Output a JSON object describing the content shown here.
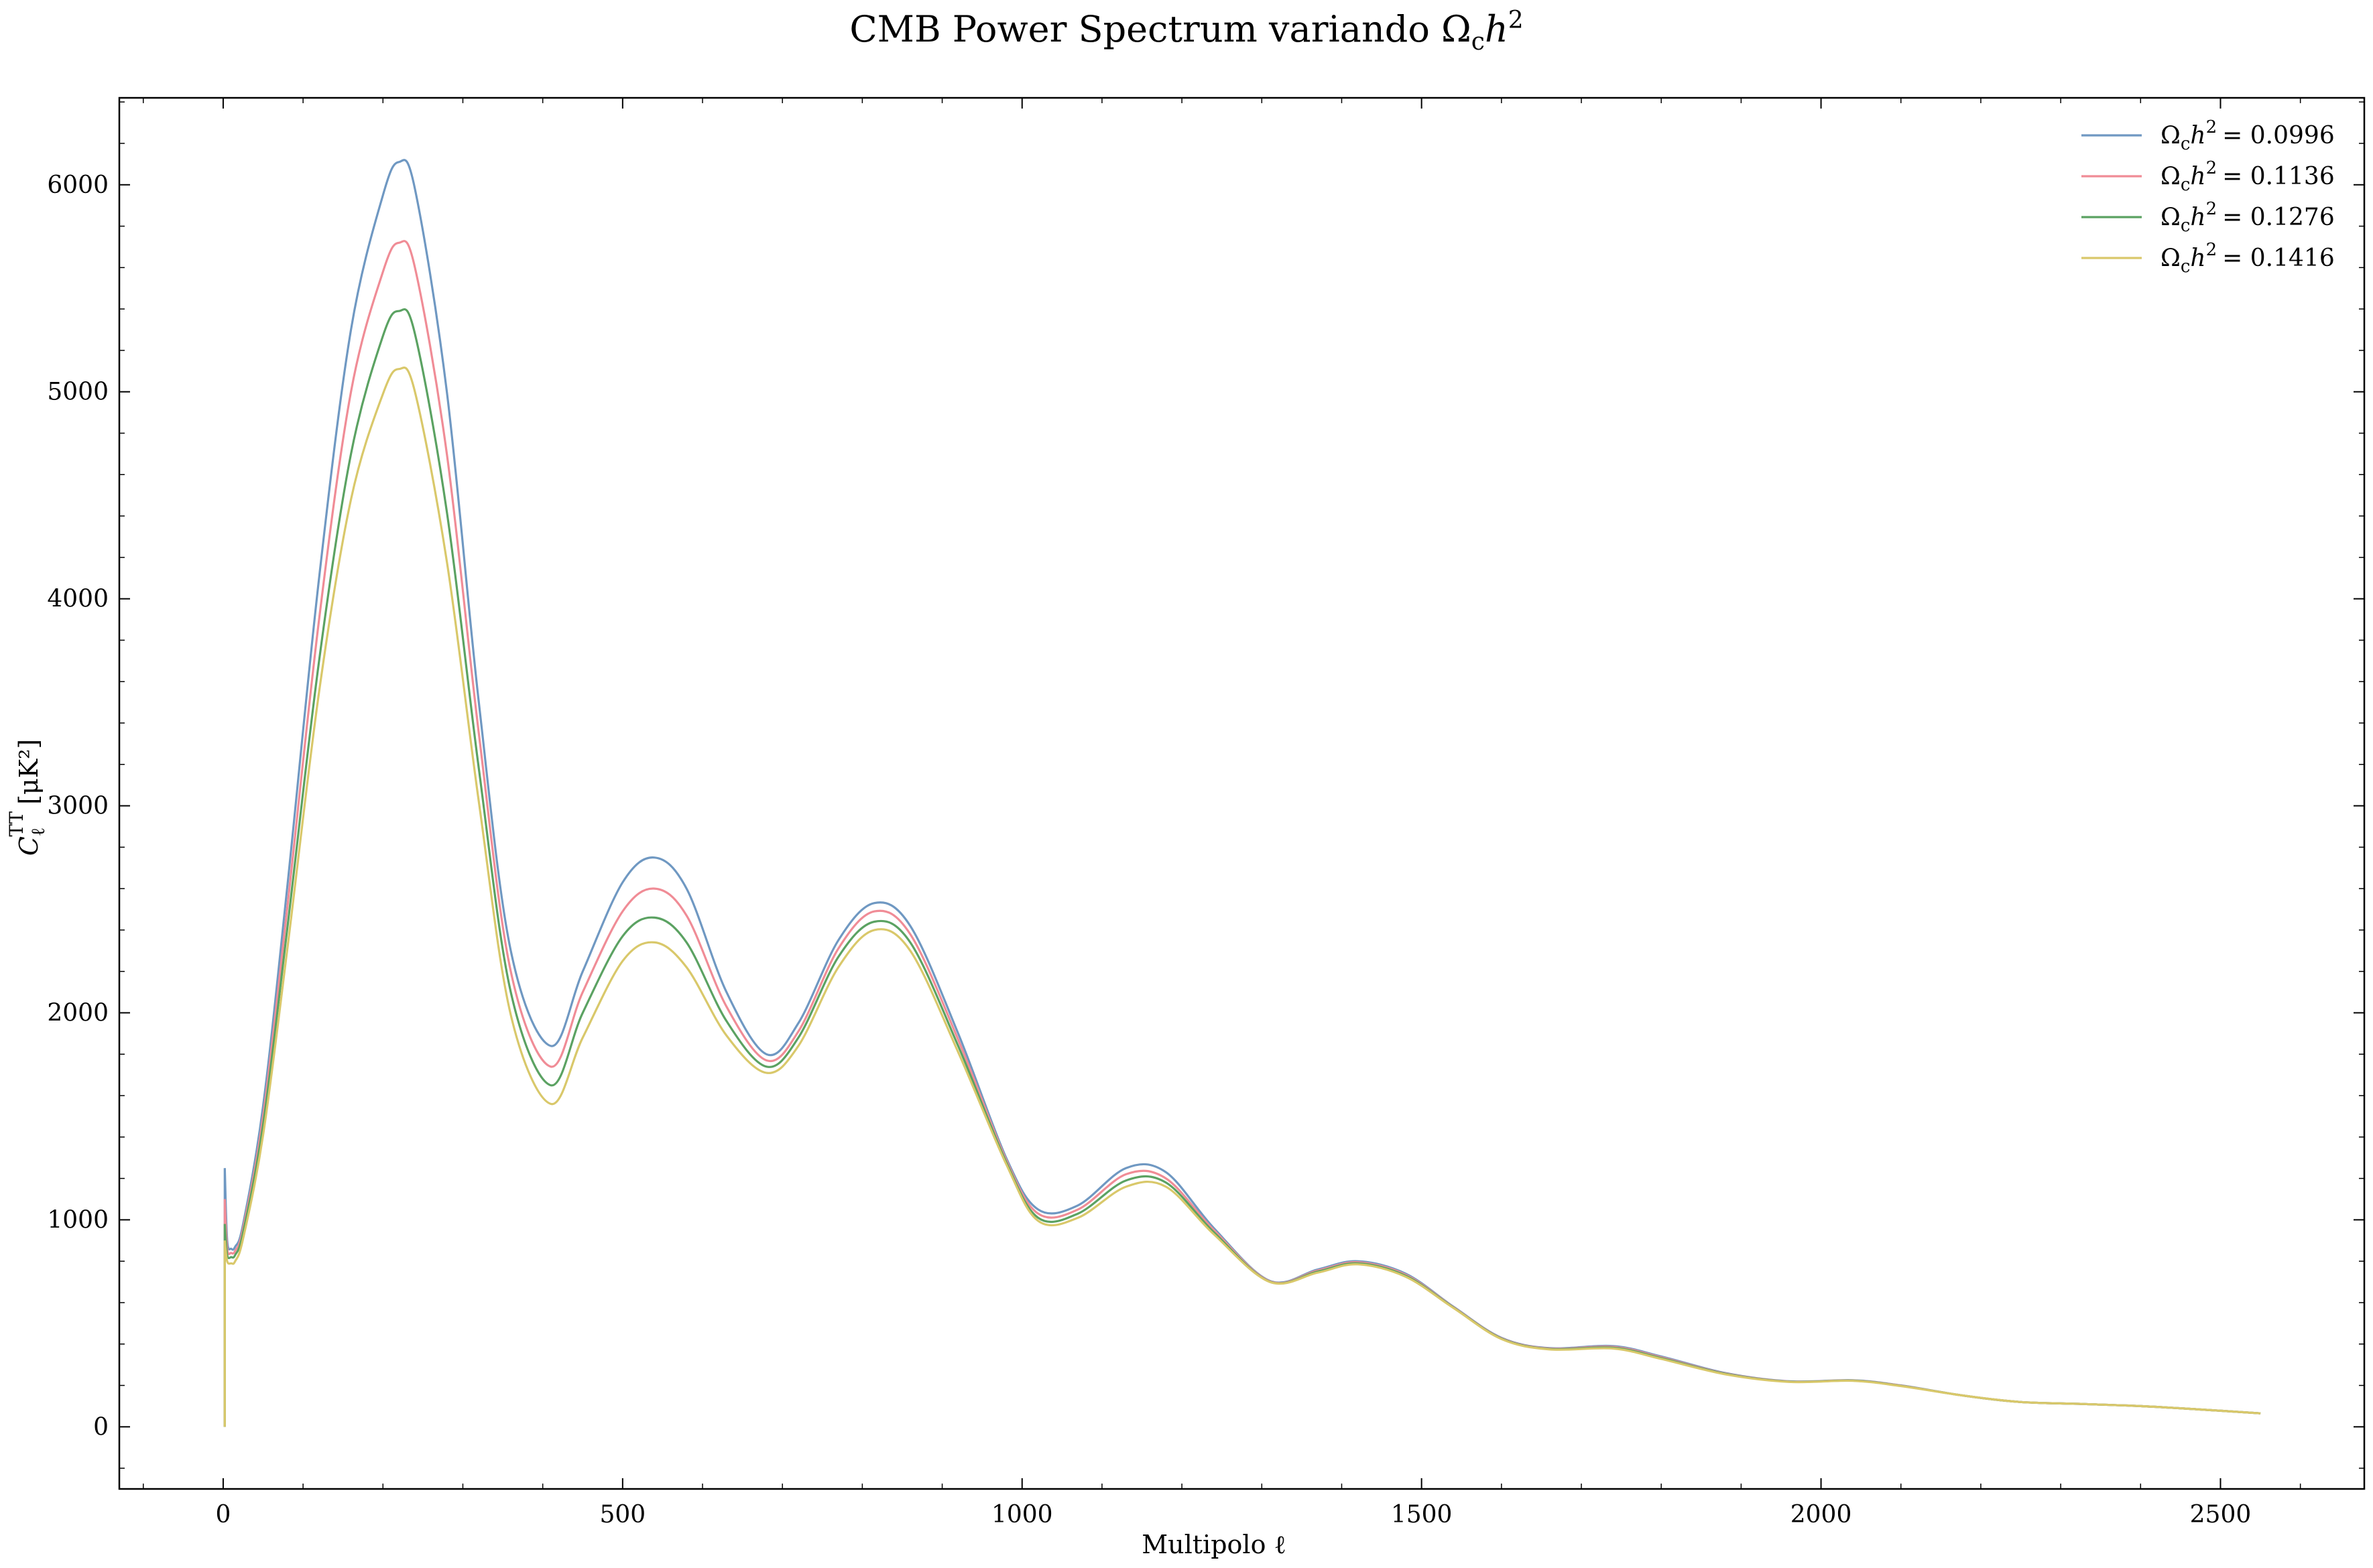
{
  "chart_data": {
    "type": "line",
    "title": "CMB Power Spectrum variando Ω",
    "title_sub": "c",
    "title_h": "h",
    "title_sup": "2",
    "xlabel": "Multipolo ℓ",
    "ylabel": "C",
    "ylabel_sup": "TT",
    "ylabel_sub": "ℓ",
    "ylabel_unit": "[μK²]",
    "xlim": [
      -130,
      2680
    ],
    "ylim": [
      -300,
      6420
    ],
    "x_ticks": [
      0,
      500,
      1000,
      1500,
      2000,
      2500
    ],
    "y_ticks": [
      0,
      1000,
      2000,
      3000,
      4000,
      5000,
      6000
    ],
    "grid": false,
    "legend_position": "top-right",
    "legend_prefix": "Ω",
    "legend_sub": "c",
    "legend_h": "h",
    "legend_sup": "2",
    "x": [
      2,
      5,
      10,
      15,
      25,
      50,
      80,
      120,
      160,
      200,
      220,
      240,
      280,
      320,
      360,
      410,
      450,
      500,
      540,
      580,
      630,
      680,
      720,
      770,
      815,
      860,
      920,
      980,
      1020,
      1070,
      1130,
      1180,
      1240,
      1310,
      1370,
      1420,
      1480,
      1540,
      1600,
      1660,
      1740,
      1800,
      1880,
      1960,
      2040,
      2100,
      2180,
      2250,
      2330,
      2400,
      2470,
      2550
    ],
    "series": [
      {
        "name": "= 0.0996",
        "color": "#6f98c2",
        "values": [
          1250,
          900,
          860,
          870,
          980,
          1550,
          2600,
          4100,
          5300,
          5950,
          6110,
          5980,
          5000,
          3500,
          2300,
          1840,
          2200,
          2630,
          2750,
          2600,
          2100,
          1800,
          1950,
          2350,
          2530,
          2420,
          1900,
          1300,
          1050,
          1070,
          1250,
          1230,
          960,
          705,
          760,
          800,
          740,
          580,
          430,
          380,
          390,
          340,
          260,
          220,
          225,
          200,
          150,
          120,
          110,
          100,
          85,
          65
        ]
      },
      {
        "name": "= 0.1136",
        "color": "#f08c96",
        "values": [
          1100,
          860,
          840,
          850,
          960,
          1500,
          2500,
          3900,
          5000,
          5580,
          5720,
          5600,
          4700,
          3350,
          2200,
          1740,
          2100,
          2490,
          2600,
          2470,
          2030,
          1770,
          1910,
          2310,
          2490,
          2380,
          1870,
          1290,
          1030,
          1050,
          1220,
          1200,
          950,
          703,
          755,
          795,
          735,
          578,
          428,
          378,
          386,
          336,
          258,
          219,
          224,
          199,
          150,
          120,
          110,
          100,
          85,
          65
        ]
      },
      {
        "name": "= 0.1276",
        "color": "#5ba262",
        "values": [
          980,
          830,
          820,
          830,
          940,
          1460,
          2400,
          3700,
          4700,
          5270,
          5390,
          5280,
          4420,
          3180,
          2100,
          1650,
          2000,
          2370,
          2460,
          2340,
          1960,
          1740,
          1880,
          2270,
          2440,
          2340,
          1840,
          1280,
          1010,
          1030,
          1190,
          1180,
          940,
          701,
          750,
          790,
          730,
          576,
          426,
          376,
          382,
          332,
          256,
          218,
          223,
          198,
          150,
          120,
          110,
          100,
          85,
          65
        ]
      },
      {
        "name": "= 0.1416",
        "color": "#d9c86a",
        "values": [
          900,
          800,
          790,
          800,
          910,
          1410,
          2300,
          3550,
          4480,
          4990,
          5110,
          5000,
          4180,
          3020,
          1990,
          1560,
          1880,
          2250,
          2340,
          2220,
          1890,
          1710,
          1840,
          2220,
          2400,
          2300,
          1810,
          1270,
          995,
          1010,
          1160,
          1160,
          930,
          700,
          745,
          785,
          725,
          574,
          424,
          374,
          378,
          328,
          254,
          217,
          222,
          197,
          150,
          120,
          110,
          100,
          85,
          65
        ]
      }
    ]
  }
}
